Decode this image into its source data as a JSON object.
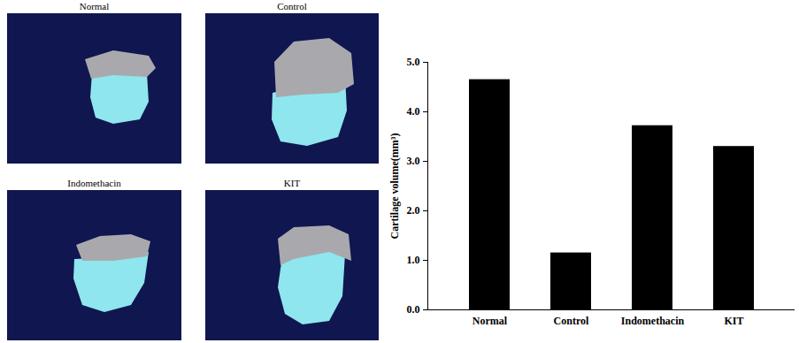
{
  "chart_data": {
    "type": "bar",
    "categories": [
      "Normal",
      "Control",
      "Indomethacin",
      "KIT"
    ],
    "values": [
      4.65,
      1.15,
      3.72,
      3.3
    ],
    "color": "#000000",
    "ylabel": "Cartilage volume(mm³)",
    "ylim": [
      0,
      5
    ],
    "yticks": [
      0,
      1,
      2,
      3,
      4,
      5
    ],
    "grid": false
  },
  "panels": [
    "Normal",
    "Control",
    "Indomethacin",
    "KIT"
  ]
}
